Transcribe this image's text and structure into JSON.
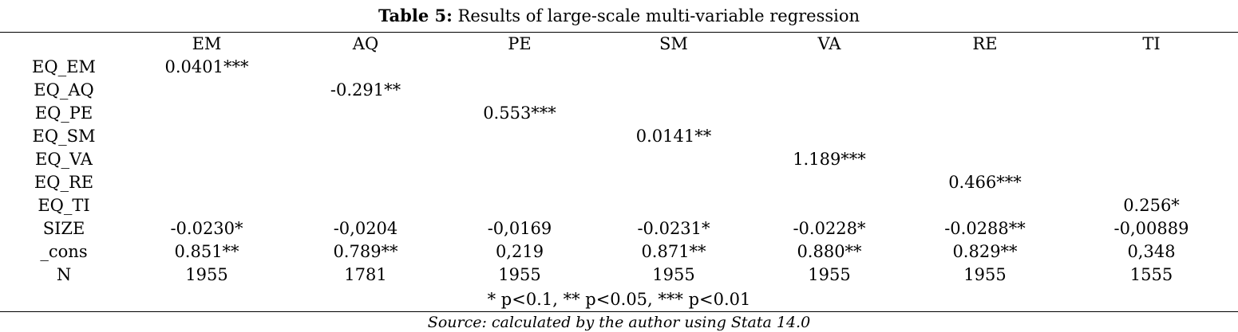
{
  "caption": {
    "label": "Table 5:",
    "text": "Results of large-scale multi-variable regression"
  },
  "columns": [
    "",
    "EM",
    "AQ",
    "PE",
    "SM",
    "VA",
    "RE",
    "TI"
  ],
  "rows": [
    {
      "name": "EQ_EM",
      "values": [
        "0.0401***",
        "",
        "",
        "",
        "",
        "",
        ""
      ]
    },
    {
      "name": "EQ_AQ",
      "values": [
        "",
        "-0.291**",
        "",
        "",
        "",
        "",
        ""
      ]
    },
    {
      "name": "EQ_PE",
      "values": [
        "",
        "",
        "0.553***",
        "",
        "",
        "",
        ""
      ]
    },
    {
      "name": "EQ_SM",
      "values": [
        "",
        "",
        "",
        "0.0141**",
        "",
        "",
        ""
      ]
    },
    {
      "name": "EQ_VA",
      "values": [
        "",
        "",
        "",
        "",
        "1.189***",
        "",
        ""
      ]
    },
    {
      "name": "EQ_RE",
      "values": [
        "",
        "",
        "",
        "",
        "",
        "0.466***",
        ""
      ]
    },
    {
      "name": "EQ_TI",
      "values": [
        "",
        "",
        "",
        "",
        "",
        "",
        "0.256*"
      ]
    },
    {
      "name": "SIZE",
      "values": [
        "-0.0230*",
        "-0,0204",
        "-0,0169",
        "-0.0231*",
        "-0.0228*",
        "-0.0288**",
        "-0,00889"
      ]
    },
    {
      "name": "_cons",
      "values": [
        "0.851**",
        "0.789**",
        "0,219",
        "0.871**",
        "0.880**",
        "0.829**",
        "0,348"
      ]
    },
    {
      "name": "N",
      "values": [
        "1955",
        "1781",
        "1955",
        "1955",
        "1955",
        "1955",
        "1555"
      ]
    }
  ],
  "significance_note": "* p<0.1, ** p<0.05, *** p<0.01",
  "source_note": "Source: calculated by the author using Stata 14.0"
}
